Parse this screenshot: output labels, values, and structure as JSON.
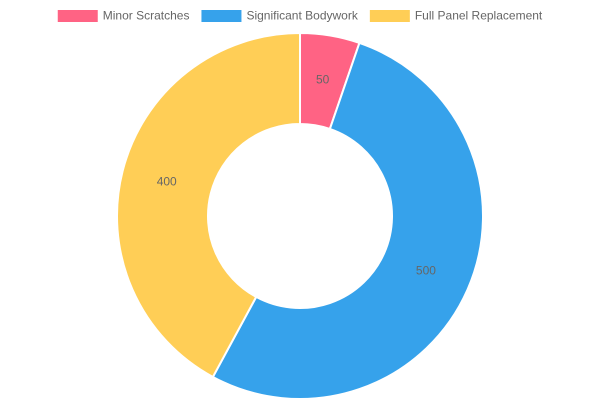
{
  "chart_data": {
    "type": "doughnut",
    "categories": [
      "Minor Scratches",
      "Significant Bodywork",
      "Full Panel Replacement"
    ],
    "values": [
      50,
      500,
      400
    ],
    "colors": [
      "#ff6384",
      "#36a2eb",
      "#ffce56"
    ],
    "legend": "top"
  }
}
